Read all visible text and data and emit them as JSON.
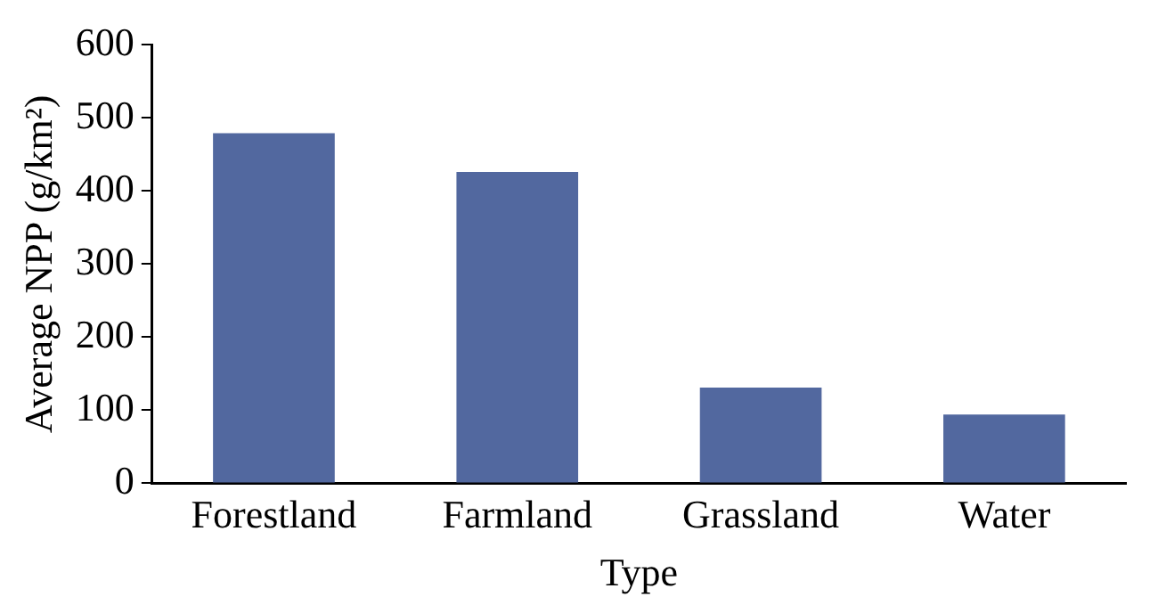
{
  "chart_data": {
    "type": "bar",
    "xlabel": "Type",
    "ylabel": "Average NPP (g/km²)",
    "categories": [
      "Forestland",
      "Farmland",
      "Grassland",
      "Water"
    ],
    "values": [
      479,
      426,
      131,
      94
    ],
    "color": "#52689f",
    "ylim": [
      0,
      600
    ],
    "yticks": [
      0,
      100,
      200,
      300,
      400,
      500,
      600
    ],
    "grid": false,
    "legend": false
  }
}
